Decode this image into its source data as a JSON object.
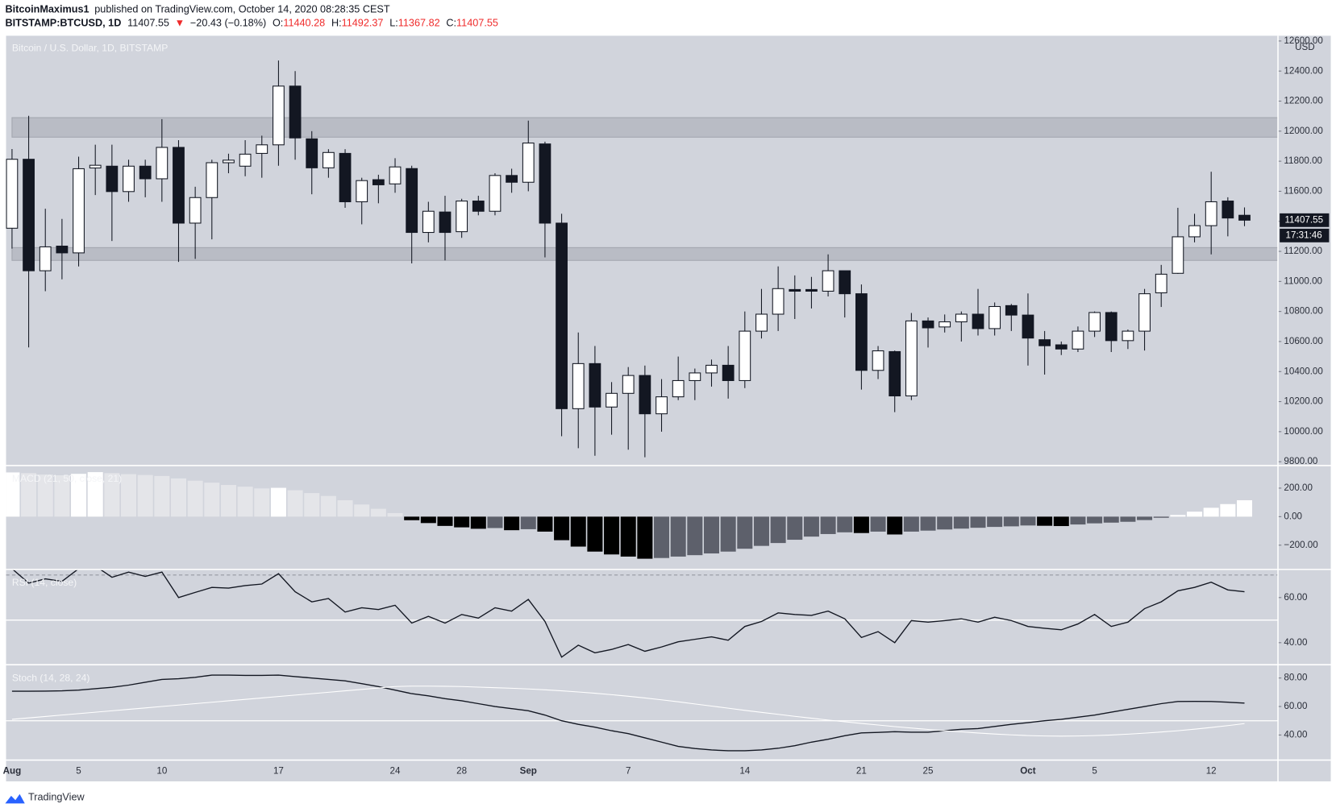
{
  "header": {
    "author": "BitcoinMaximus1",
    "published": "published on TradingView.com, October 14, 2020 08:28:35 CEST",
    "symbol": "BITSTAMP:BTCUSD, 1D",
    "arrow": "▼",
    "change": "−20.43 (−0.18%)",
    "o": "O:",
    "h": "H:",
    "l": "L:",
    "c": "C:"
  },
  "footer": {
    "brand": "TradingView"
  },
  "chart_data": [
    {
      "type": "candlestick",
      "title": "Bitcoin / U.S. Dollar, 1D, BITSTAMP",
      "currency": "USD",
      "countdown": "17:31:46",
      "categories": [
        "Aug",
        null,
        null,
        null,
        "5",
        null,
        null,
        null,
        null,
        "10",
        null,
        null,
        null,
        null,
        null,
        null,
        "17",
        null,
        null,
        null,
        null,
        null,
        null,
        "24",
        null,
        null,
        null,
        "28",
        null,
        null,
        null,
        "Sep",
        null,
        null,
        null,
        null,
        null,
        "7",
        null,
        null,
        null,
        null,
        null,
        null,
        "14",
        null,
        null,
        null,
        null,
        null,
        null,
        "21",
        null,
        null,
        null,
        "25",
        null,
        null,
        null,
        null,
        null,
        "Oct",
        null,
        null,
        null,
        "5",
        null,
        null,
        null,
        null,
        null,
        null,
        "12",
        null,
        null
      ],
      "open": [
        11354,
        11813,
        11071,
        11235,
        11190,
        11755,
        11767,
        11598,
        11767,
        11683,
        11892,
        11388,
        11558,
        11790,
        11767,
        11852,
        11909,
        12300,
        11949,
        11756,
        11852,
        11530,
        11677,
        11649,
        11751,
        11326,
        11462,
        11331,
        11535,
        11467,
        11705,
        11660,
        11915,
        11388,
        10153,
        10453,
        10164,
        10255,
        10374,
        10119,
        10232,
        10340,
        10391,
        10442,
        10340,
        10669,
        10782,
        10946,
        10946,
        10935,
        11071,
        10918,
        10408,
        10533,
        10238,
        10737,
        10697,
        10731,
        10782,
        10686,
        10839,
        10776,
        10612,
        10578,
        10550,
        10669,
        10793,
        10606,
        10669,
        10924,
        11054,
        11297,
        11371,
        11535,
        11440.28
      ],
      "high": [
        11881,
        12102,
        11484,
        11416,
        11830,
        11910,
        11910,
        11810,
        11810,
        12080,
        11940,
        11630,
        11810,
        11850,
        11940,
        11970,
        12470,
        12400,
        12000,
        11880,
        11880,
        11690,
        11710,
        11820,
        11770,
        11530,
        11570,
        11550,
        11570,
        11720,
        11750,
        12070,
        11930,
        11450,
        10660,
        10570,
        10330,
        10430,
        10440,
        10350,
        10500,
        10420,
        10480,
        10570,
        10800,
        10950,
        11100,
        11040,
        11030,
        11180,
        11070,
        10980,
        10570,
        10540,
        10790,
        10760,
        10780,
        10800,
        10950,
        10860,
        10850,
        10920,
        10670,
        10600,
        10700,
        10800,
        10800,
        10680,
        10950,
        11110,
        11490,
        11450,
        11730,
        11560,
        11492.37
      ],
      "low": [
        11218,
        10561,
        10935,
        11014,
        11100,
        11575,
        11269,
        11530,
        11560,
        11530,
        11130,
        11150,
        11280,
        11720,
        11700,
        11690,
        11770,
        11810,
        11580,
        11690,
        11490,
        11380,
        11520,
        11590,
        11120,
        11260,
        11140,
        11290,
        11440,
        11440,
        11590,
        11600,
        11160,
        9970,
        9890,
        9840,
        9980,
        9880,
        9830,
        10000,
        10210,
        10210,
        10300,
        10220,
        10290,
        10620,
        10670,
        10750,
        10820,
        10900,
        10760,
        10280,
        10350,
        10130,
        10210,
        10560,
        10660,
        10600,
        10640,
        10640,
        10670,
        10440,
        10380,
        10510,
        10530,
        10630,
        10530,
        10550,
        10540,
        10830,
        11050,
        11260,
        11180,
        11300,
        11367.82
      ],
      "close": [
        11813,
        11071,
        11230,
        11190,
        11750,
        11773,
        11598,
        11767,
        11683,
        11892,
        11388,
        11558,
        11790,
        11807,
        11847,
        11909,
        12300,
        11955,
        11756,
        11858,
        11530,
        11671,
        11643,
        11762,
        11326,
        11467,
        11326,
        11535,
        11467,
        11705,
        11660,
        11921,
        11388,
        10153,
        10453,
        10164,
        10255,
        10374,
        10119,
        10232,
        10340,
        10391,
        10442,
        10340,
        10669,
        10782,
        10952,
        10935,
        10935,
        11071,
        10918,
        10408,
        10538,
        10238,
        10737,
        10691,
        10731,
        10782,
        10686,
        10833,
        10776,
        10623,
        10572,
        10550,
        10669,
        10793,
        10606,
        10669,
        10918,
        11048,
        11297,
        11371,
        11530,
        11422,
        11407.55
      ],
      "up_color": "#ffffff",
      "down_color": "#131722",
      "zones": [
        [
          11960,
          12090
        ],
        [
          11140,
          11225
        ]
      ],
      "ylim": [
        9780,
        12635
      ],
      "yticks": [
        {
          "value": 9800,
          "label": "9800.00"
        },
        {
          "value": 10000,
          "label": "10000.00"
        },
        {
          "value": 10200,
          "label": "10200.00"
        },
        {
          "value": 10400,
          "label": "10400.00"
        },
        {
          "value": 10600,
          "label": "10600.00"
        },
        {
          "value": 10800,
          "label": "10800.00"
        },
        {
          "value": 11000,
          "label": "11000.00"
        },
        {
          "value": 11200,
          "label": "11200.00"
        },
        {
          "value": 11400,
          "label": "11400.00"
        },
        {
          "value": 11600,
          "label": "11600.00"
        },
        {
          "value": 11800,
          "label": "11800.00"
        },
        {
          "value": 12000,
          "label": "12000.00"
        },
        {
          "value": 12200,
          "label": "12200.00"
        },
        {
          "value": 12400,
          "label": "12400.00"
        },
        {
          "value": 12600,
          "label": "12600.00"
        }
      ]
    },
    {
      "type": "histogram",
      "title": "MACD (21, 50, close, 21)",
      "values": [
        310,
        305,
        295,
        290,
        300,
        312,
        305,
        298,
        292,
        285,
        268,
        252,
        238,
        222,
        210,
        198,
        202,
        185,
        165,
        145,
        115,
        85,
        55,
        25,
        -25,
        -45,
        -65,
        -75,
        -85,
        -80,
        -95,
        -88,
        -105,
        -165,
        -210,
        -245,
        -265,
        -280,
        -295,
        -290,
        -280,
        -270,
        -258,
        -245,
        -225,
        -205,
        -185,
        -162,
        -140,
        -122,
        -110,
        -115,
        -105,
        -125,
        -105,
        -98,
        -90,
        -84,
        -78,
        -72,
        -68,
        -62,
        -64,
        -66,
        -55,
        -47,
        -42,
        -36,
        -24,
        -8,
        12,
        35,
        62,
        88,
        115
      ],
      "colors": {
        "pos_rising": "#ffffff",
        "pos_falling": "#e4e5e9",
        "neg_falling": "#000000",
        "neg_rising": "#5d606b"
      },
      "ylim": [
        -364,
        352
      ],
      "yticks": [
        {
          "value": 200,
          "label": "200.00"
        },
        {
          "value": 0,
          "label": "0.00"
        },
        {
          "value": -200,
          "label": "−200.00"
        }
      ]
    },
    {
      "type": "line",
      "title": "RSI (14, close)",
      "series": [
        {
          "color": "#131722",
          "values": [
            72.8,
            66.4,
            68.3,
            67.2,
            72.8,
            74,
            69,
            71.3,
            69.4,
            71.3,
            60,
            62.3,
            64.5,
            64.2,
            65.3,
            66,
            70.6,
            62.6,
            58.1,
            59.6,
            53.6,
            55.5,
            54.7,
            56.6,
            48.7,
            51.7,
            48.7,
            52.5,
            50.9,
            55.5,
            54,
            59.2,
            49.4,
            33.6,
            38.9,
            35.5,
            37,
            39.2,
            36.2,
            38.1,
            40.4,
            41.5,
            42.6,
            41.1,
            47.2,
            49.4,
            53.2,
            52.5,
            52.1,
            54,
            50.6,
            42.3,
            44.9,
            40,
            49.8,
            49.1,
            49.8,
            50.6,
            49.1,
            51.3,
            49.8,
            47.2,
            46.4,
            45.7,
            48.3,
            52.5,
            47.2,
            49.1,
            55.1,
            58.1,
            63,
            64.5,
            66.8,
            63.4,
            62.6
          ]
        }
      ],
      "levels": [
        50
      ],
      "dashed_levels": [
        70
      ],
      "ylim": [
        30.6,
        72.1
      ],
      "yticks": [
        {
          "value": 40,
          "label": "40.00"
        },
        {
          "value": 60,
          "label": "60.00"
        }
      ]
    },
    {
      "type": "line",
      "title": "Stoch (14, 28, 24)",
      "series": [
        {
          "color": "#131722",
          "values": [
            70.7,
            70.7,
            70.8,
            71,
            71.5,
            72.5,
            73.5,
            75,
            77,
            79,
            79.5,
            80.5,
            82,
            82,
            81.8,
            81.8,
            82,
            81,
            80,
            79,
            78,
            76,
            74,
            71.5,
            69,
            67.5,
            65.5,
            64,
            62,
            60,
            58.5,
            57,
            54,
            50,
            47.5,
            45.5,
            43,
            41,
            38,
            35,
            32,
            30.5,
            29.5,
            29,
            29,
            29.5,
            30.7,
            32.5,
            35,
            37,
            39.5,
            41.5,
            41.8,
            42.3,
            42,
            42,
            43,
            44,
            44.5,
            46,
            47.5,
            48.7,
            50,
            51,
            52.5,
            54,
            56,
            58,
            60,
            62,
            63.5,
            63.6,
            63.5,
            63,
            62.4
          ]
        },
        {
          "color": "#ffffff",
          "values": [
            51,
            52,
            53,
            54,
            55,
            56,
            57,
            58,
            59,
            60,
            61,
            62,
            63,
            64,
            65,
            66,
            67,
            68,
            69,
            70,
            71,
            72,
            73,
            74,
            74.3,
            74.3,
            74.2,
            74,
            73.6,
            73.2,
            72.8,
            72.3,
            71.7,
            71,
            70.2,
            69.3,
            68.3,
            67.2,
            66,
            64.7,
            63.3,
            61.8,
            60.3,
            58.8,
            57.3,
            55.9,
            54.5,
            53.1,
            51.8,
            50.5,
            49.3,
            48.1,
            47,
            45.9,
            44.9,
            43.9,
            43,
            42.2,
            41.4,
            40.7,
            40.1,
            39.6,
            39.3,
            39.2,
            39.3,
            39.6,
            40,
            40.6,
            41.3,
            42.1,
            43,
            44.1,
            45.3,
            46.6,
            48
          ]
        }
      ],
      "levels": [
        50
      ],
      "dashed_levels": [],
      "ylim": [
        23,
        88.7
      ],
      "yticks": [
        {
          "value": 40,
          "label": "40.00"
        },
        {
          "value": 60,
          "label": "60.00"
        },
        {
          "value": 80,
          "label": "80.00"
        }
      ]
    }
  ]
}
